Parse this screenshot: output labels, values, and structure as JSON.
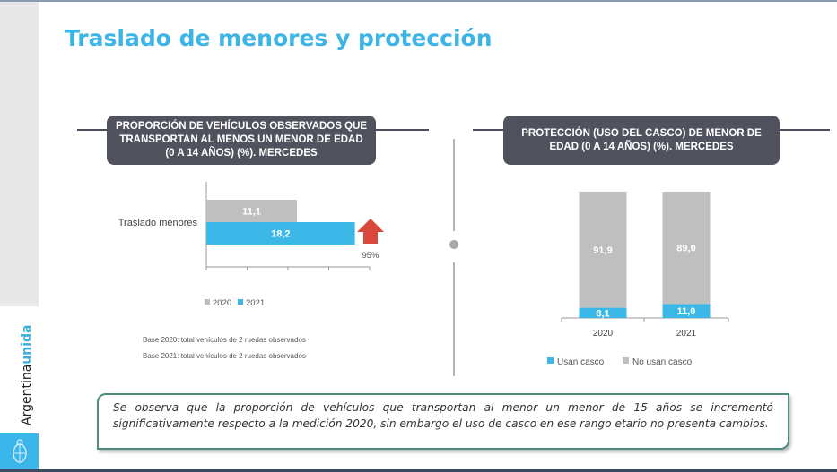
{
  "page": {
    "title": "Traslado de menores y protección",
    "brand": {
      "text_main": "Argentina",
      "text_accent": "unida",
      "logo_icon": "coat-of-arms-icon"
    },
    "note": "Se observa que la proporción de vehículos que transportan al menor un menor de 15 años se incrementó significativamente respecto a la medición 2020, sin embargo el uso de casco en ese rango etario no presenta cambios."
  },
  "chart_data": [
    {
      "type": "bar",
      "orientation": "horizontal",
      "title": "PROPORCIÓN DE VEHÍCULOS OBSERVADOS QUE TRANSPORTAN AL MENOS UN MENOR DE EDAD (0 A 14 AÑOS) (%). MERCEDES",
      "categories": [
        "Traslado menores"
      ],
      "series": [
        {
          "name": "2020",
          "values": [
            11.1
          ],
          "labels": [
            "11,1"
          ],
          "color": "#bfbfbf"
        },
        {
          "name": "2021",
          "values": [
            18.2
          ],
          "labels": [
            "18,2"
          ],
          "color": "#3cb8e8"
        }
      ],
      "xlim": [
        0,
        20
      ],
      "x_ticks": [
        0,
        5,
        10,
        15,
        20
      ],
      "tick_labels_shown": false,
      "grid": false,
      "legend": "bottom",
      "annotation": {
        "icon": "up-arrow-icon",
        "text": "95%",
        "color": "#d9483b"
      },
      "footnotes": [
        "Base 2020: total vehículos de 2 ruedas observados",
        "Base 2021: total vehículos de 2 ruedas observados"
      ]
    },
    {
      "type": "bar",
      "stacked": true,
      "title": "PROTECCIÓN (USO DEL CASCO) DE MENOR DE EDAD (0 A 14 AÑOS) (%). MERCEDES",
      "categories": [
        "2020",
        "2021"
      ],
      "series": [
        {
          "name": "Usan casco",
          "values": [
            8.1,
            11.0
          ],
          "labels": [
            "8,1",
            "11,0"
          ],
          "color": "#3cb8e8"
        },
        {
          "name": "No usan casco",
          "values": [
            91.9,
            89.0
          ],
          "labels": [
            "91,9",
            "89,0"
          ],
          "color": "#bfbfbf"
        }
      ],
      "ylim": [
        0,
        100
      ],
      "grid": false,
      "legend": "bottom"
    }
  ]
}
